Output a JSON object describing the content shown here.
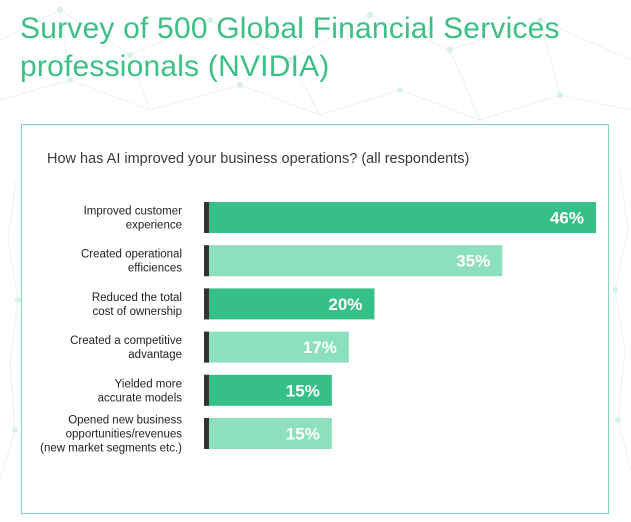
{
  "title": "Survey of 500 Global Financial Services professionals (NVIDIA)",
  "colors": {
    "title": "#3dbf87",
    "bar_dark": "#36c088",
    "bar_light": "#8de0bd",
    "bar_edge": "#333333",
    "card_border": "#7fd9b3"
  },
  "chart_data": {
    "type": "bar",
    "orientation": "horizontal",
    "title": "How has AI improved your business operations? (all respondents)",
    "categories": [
      [
        "Improved customer",
        "experience"
      ],
      [
        "Created operational",
        "efficiences"
      ],
      [
        "Reduced the total",
        "cost of ownership"
      ],
      [
        "Created a competitive",
        "advantage"
      ],
      [
        "Yielded more",
        "accurate models"
      ],
      [
        "Opened new business",
        "opportunities/revenues",
        "(new market segments etc.)"
      ]
    ],
    "values": [
      46,
      35,
      20,
      17,
      15,
      15
    ],
    "value_labels": [
      "46%",
      "35%",
      "20%",
      "17%",
      "15%",
      "15%"
    ],
    "unit": "%",
    "xlim": [
      0,
      46
    ],
    "grid": false,
    "legend": "none"
  }
}
